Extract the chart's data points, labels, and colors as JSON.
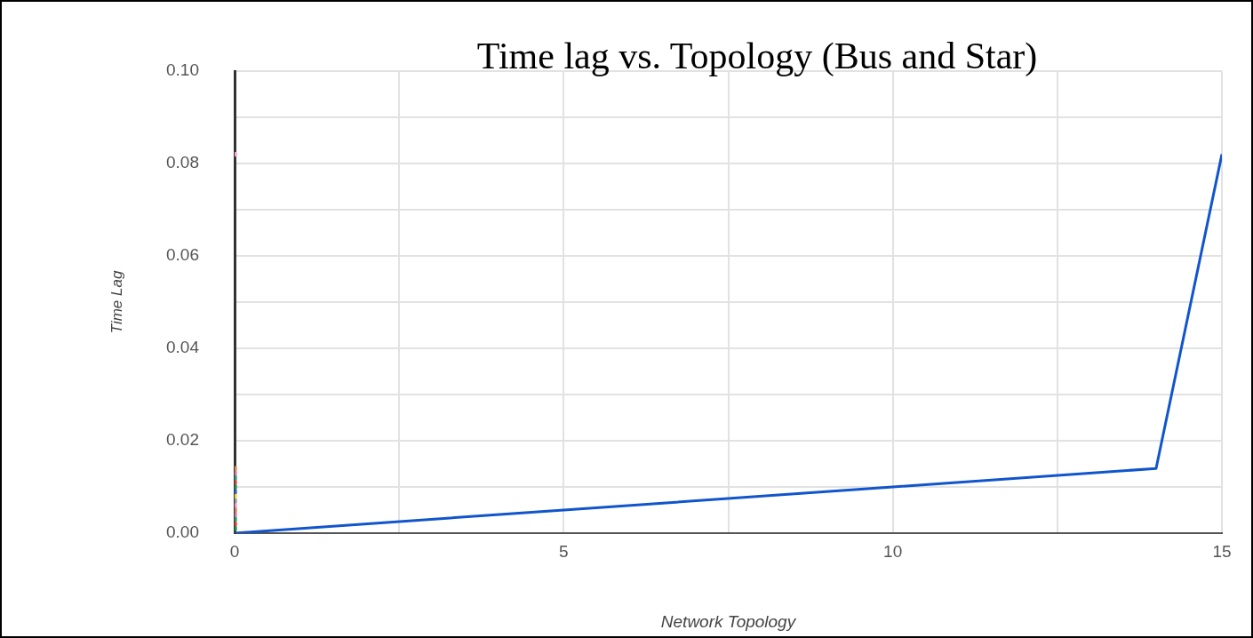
{
  "chart_data": {
    "type": "line",
    "title": "Time lag vs. Topology (Bus and Star)",
    "xlabel": "Network Topology",
    "ylabel": "Time Lag",
    "xlim": [
      0,
      15
    ],
    "xticks": [
      0,
      {
        "value": 2.5,
        "label": null
      },
      5,
      {
        "value": 7.5,
        "label": null
      },
      10,
      {
        "value": 12.5,
        "label": null
      },
      15
    ],
    "ylim": [
      0,
      0.1
    ],
    "yticks": [
      {
        "value": 0,
        "label": "0.00"
      },
      {
        "value": 0.01,
        "label": null
      },
      {
        "value": 0.02,
        "label": "0.02"
      },
      {
        "value": 0.03,
        "label": null
      },
      {
        "value": 0.04,
        "label": "0.04"
      },
      {
        "value": 0.05,
        "label": null
      },
      {
        "value": 0.06,
        "label": "0.06"
      },
      {
        "value": 0.07,
        "label": null
      },
      {
        "value": 0.08,
        "label": "0.08"
      },
      {
        "value": 0.09,
        "label": null
      },
      {
        "value": 0.1,
        "label": "0.10"
      }
    ],
    "grid": true,
    "series": [
      {
        "color": "#1155cc",
        "marker": "none",
        "x": [
          0,
          5,
          10,
          14,
          15
        ],
        "values": [
          0,
          0.005,
          0.01,
          0.014,
          0.082
        ]
      },
      {
        "type": "scatter",
        "marker": "square",
        "x": [
          0,
          0,
          0,
          0,
          0,
          0,
          0,
          0,
          0,
          0,
          0,
          0,
          0,
          0,
          0
        ],
        "values": [
          0.001,
          0.002,
          0.003,
          0.004,
          0.005,
          0.006,
          0.007,
          0.008,
          0.009,
          0.01,
          0.011,
          0.012,
          0.013,
          0.014,
          0.082
        ],
        "colors": [
          "#1a9850",
          "#e0453a",
          "#26a070",
          "#e07aa0",
          "#d4805a",
          "#f0a0c8",
          "#999999",
          "#e8d84a",
          "#3366cc",
          "#1a9850",
          "#e0453a",
          "#2aa080",
          "#e07aa0",
          "#d4905a",
          "#f5a0d0"
        ]
      }
    ]
  }
}
